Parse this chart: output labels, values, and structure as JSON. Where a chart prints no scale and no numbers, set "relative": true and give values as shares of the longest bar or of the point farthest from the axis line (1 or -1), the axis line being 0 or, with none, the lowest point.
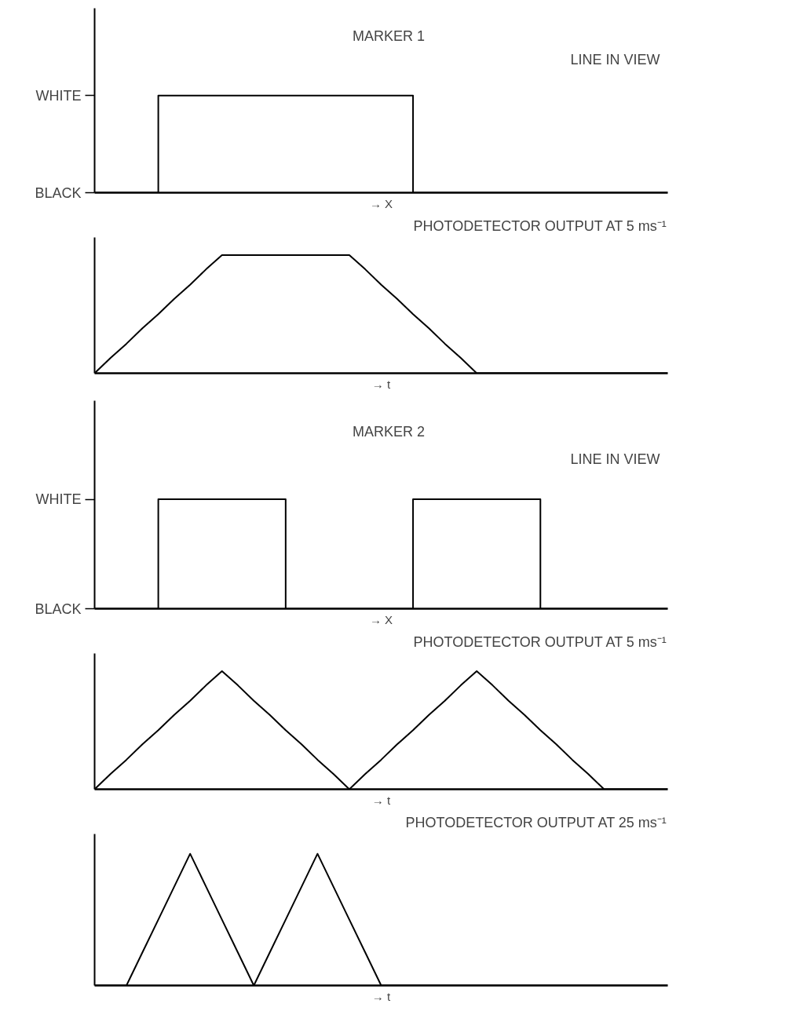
{
  "chart_data": [
    {
      "type": "step",
      "relative": true,
      "xlabel": "→ X",
      "annotations": [
        "MARKER 1",
        "LINE IN VIEW",
        "BLACK",
        "WHITE"
      ],
      "categories": [
        null,
        null,
        null,
        null,
        null,
        null,
        null,
        null,
        null,
        null,
        null,
        null,
        null,
        null,
        null,
        null,
        null,
        null,
        null,
        null,
        null,
        null,
        null,
        null,
        null,
        null,
        null,
        null,
        null,
        null,
        null,
        null,
        null,
        null,
        null,
        null,
        null
      ],
      "series": [
        {
          "color": "#000000",
          "values": [
            0,
            0,
            0,
            0,
            1,
            1,
            1,
            1,
            1,
            1,
            1,
            1,
            1,
            1,
            1,
            1,
            1,
            1,
            1,
            1,
            0,
            0,
            0,
            0,
            0,
            0,
            0,
            0,
            0,
            0,
            0,
            0,
            0,
            0,
            0,
            0,
            0
          ]
        }
      ]
    },
    {
      "type": "line",
      "relative": true,
      "title": "PHOTODETECTOR OUTPUT AT 5 ms⁻¹",
      "xlabel": "→ t",
      "categories": [
        null,
        null,
        null,
        null,
        null,
        null,
        null,
        null,
        null,
        null,
        null,
        null,
        null,
        null,
        null,
        null,
        null,
        null,
        null,
        null,
        null,
        null,
        null,
        null,
        null,
        null,
        null,
        null,
        null,
        null,
        null,
        null,
        null,
        null,
        null,
        null,
        null
      ],
      "series": [
        {
          "color": "#000000",
          "values": [
            0,
            0.13,
            0.25,
            0.38,
            0.5,
            0.63,
            0.75,
            0.88,
            1,
            1,
            1,
            1,
            1,
            1,
            1,
            1,
            1,
            0.88,
            0.75,
            0.63,
            0.5,
            0.38,
            0.25,
            0.13,
            0,
            0,
            0,
            0,
            0,
            0,
            0,
            0,
            0,
            0,
            0,
            0,
            0
          ]
        }
      ]
    },
    {
      "type": "step",
      "relative": true,
      "xlabel": "→ X",
      "annotations": [
        "MARKER 2",
        "LINE IN VIEW",
        "BLACK",
        "WHITE"
      ],
      "categories": [
        null,
        null,
        null,
        null,
        null,
        null,
        null,
        null,
        null,
        null,
        null,
        null,
        null,
        null,
        null,
        null,
        null,
        null,
        null,
        null,
        null,
        null,
        null,
        null,
        null,
        null,
        null,
        null,
        null,
        null,
        null,
        null,
        null,
        null,
        null,
        null,
        null
      ],
      "series": [
        {
          "color": "#000000",
          "values": [
            0,
            0,
            0,
            0,
            1,
            1,
            1,
            1,
            1,
            1,
            1,
            1,
            0,
            0,
            0,
            0,
            0,
            0,
            0,
            0,
            1,
            1,
            1,
            1,
            1,
            1,
            1,
            1,
            0,
            0,
            0,
            0,
            0,
            0,
            0,
            0,
            0
          ]
        }
      ]
    },
    {
      "type": "line",
      "relative": true,
      "title": "PHOTODETECTOR OUTPUT AT 5 ms⁻¹",
      "xlabel": "→ t",
      "categories": [
        null,
        null,
        null,
        null,
        null,
        null,
        null,
        null,
        null,
        null,
        null,
        null,
        null,
        null,
        null,
        null,
        null,
        null,
        null,
        null,
        null,
        null,
        null,
        null,
        null,
        null,
        null,
        null,
        null,
        null,
        null,
        null,
        null,
        null,
        null,
        null,
        null
      ],
      "series": [
        {
          "color": "#000000",
          "values": [
            0,
            0.13,
            0.25,
            0.38,
            0.5,
            0.63,
            0.75,
            0.88,
            1,
            0.88,
            0.75,
            0.63,
            0.5,
            0.38,
            0.25,
            0.13,
            0,
            0.13,
            0.25,
            0.38,
            0.5,
            0.63,
            0.75,
            0.88,
            1,
            0.88,
            0.75,
            0.63,
            0.5,
            0.38,
            0.25,
            0.13,
            0,
            0,
            0,
            0,
            0
          ]
        }
      ]
    },
    {
      "type": "line",
      "relative": true,
      "title": "PHOTODETECTOR OUTPUT AT 25 ms⁻¹",
      "xlabel": "→ t",
      "categories": [
        null,
        null,
        null,
        null,
        null,
        null,
        null,
        null,
        null,
        null,
        null,
        null,
        null,
        null,
        null,
        null,
        null,
        null,
        null,
        null,
        null,
        null,
        null,
        null,
        null,
        null,
        null,
        null,
        null,
        null,
        null,
        null,
        null,
        null,
        null,
        null,
        null
      ],
      "series": [
        {
          "color": "#000000",
          "values": [
            0,
            0,
            0,
            0.25,
            0.5,
            0.75,
            1,
            0.75,
            0.5,
            0.25,
            0,
            0.25,
            0.5,
            0.75,
            1,
            0.75,
            0.5,
            0.25,
            0,
            0,
            0,
            0,
            0,
            0,
            0,
            0,
            0,
            0,
            0,
            0,
            0,
            0,
            0,
            0,
            0,
            0,
            0
          ]
        }
      ]
    }
  ]
}
